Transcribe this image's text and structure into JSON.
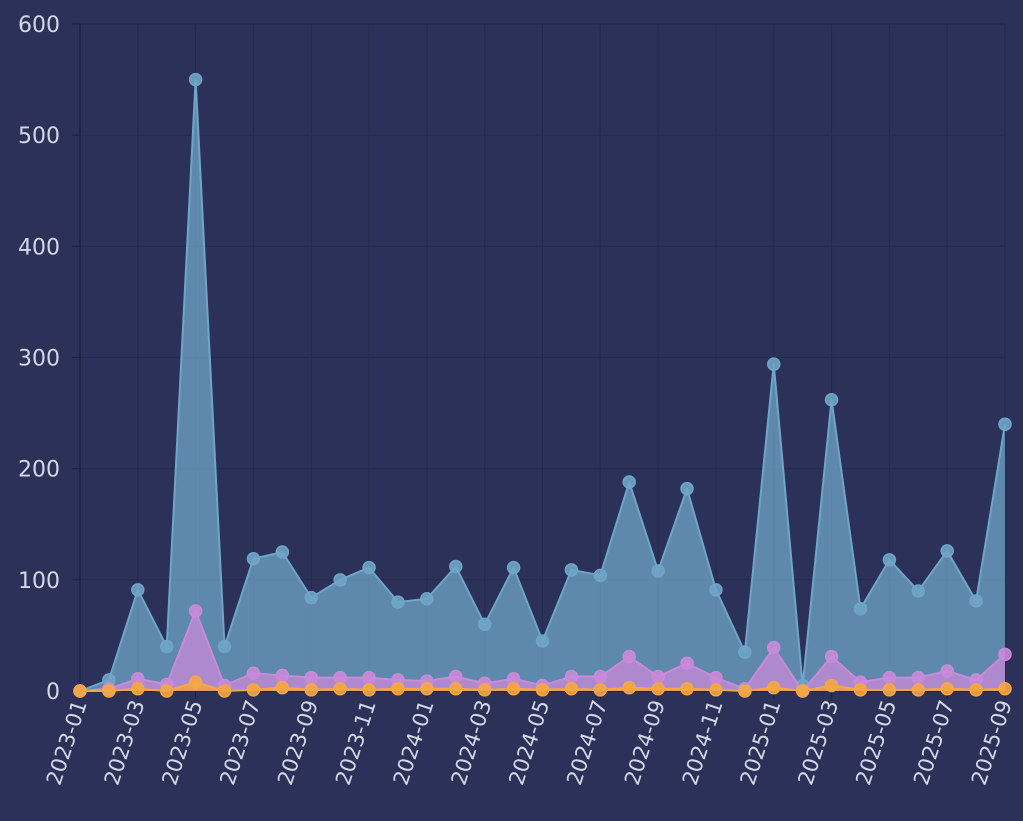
{
  "chart_data": {
    "type": "area",
    "title": "",
    "xlabel": "",
    "ylabel": "",
    "ylim": [
      0,
      600
    ],
    "y_ticks": [
      "0",
      "100",
      "200",
      "300",
      "400",
      "500",
      "600"
    ],
    "x_tick_labels": [
      "2023-01",
      "2023-03",
      "2023-05",
      "2023-07",
      "2023-09",
      "2023-11",
      "2024-01",
      "2024-03",
      "2024-05",
      "2024-07",
      "2024-09",
      "2024-11",
      "2025-01",
      "2025-03",
      "2025-05",
      "2025-07",
      "2025-09"
    ],
    "grid": true,
    "legend": "none",
    "background_color": "#2c3159",
    "categories": [
      "2023-01",
      "2023-02",
      "2023-03",
      "2023-04",
      "2023-05",
      "2023-06",
      "2023-07",
      "2023-08",
      "2023-09",
      "2023-10",
      "2023-11",
      "2023-12",
      "2024-01",
      "2024-02",
      "2024-03",
      "2024-04",
      "2024-05",
      "2024-06",
      "2024-07",
      "2024-08",
      "2024-09",
      "2024-10",
      "2024-11",
      "2024-12",
      "2025-01",
      "2025-02",
      "2025-03",
      "2025-04",
      "2025-05",
      "2025-06",
      "2025-07",
      "2025-08",
      "2025-09"
    ],
    "series": [
      {
        "color": "#6fa5c8",
        "values": [
          0,
          10,
          91,
          40,
          550,
          40,
          119,
          125,
          84,
          100,
          111,
          80,
          83,
          112,
          60,
          111,
          45,
          109,
          104,
          188,
          108,
          182,
          91,
          35,
          294,
          5,
          262,
          74,
          118,
          90,
          126,
          81,
          240
        ]
      },
      {
        "color": "#c98ad9",
        "values": [
          0,
          2,
          11,
          6,
          72,
          5,
          16,
          14,
          12,
          12,
          12,
          10,
          9,
          13,
          7,
          11,
          5,
          13,
          13,
          31,
          13,
          25,
          12,
          2,
          39,
          0,
          31,
          8,
          12,
          12,
          18,
          10,
          33
        ]
      },
      {
        "color": "#f5a742",
        "values": [
          0,
          0,
          2,
          0,
          8,
          0,
          1,
          3,
          1,
          2,
          1,
          2,
          2,
          2,
          1,
          2,
          1,
          2,
          1,
          3,
          2,
          2,
          1,
          0,
          3,
          0,
          5,
          1,
          1,
          1,
          2,
          1,
          2
        ]
      }
    ]
  }
}
